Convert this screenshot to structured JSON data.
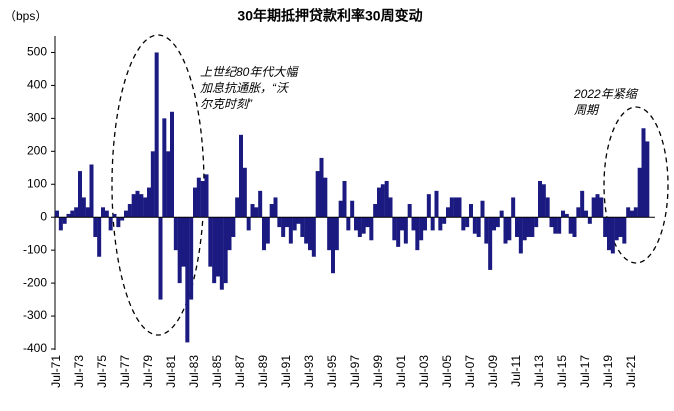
{
  "chart_data": {
    "type": "bar",
    "title": "30年期抵押贷款利率30周变动",
    "y_unit": "（bps）",
    "color": "#1a1a80",
    "categories": [
      "Jul-71",
      null,
      null,
      null,
      null,
      null,
      "Jul-73",
      null,
      null,
      null,
      null,
      null,
      "Jul-75",
      null,
      null,
      null,
      null,
      null,
      "Jul-77",
      null,
      null,
      null,
      null,
      null,
      "Jul-79",
      null,
      null,
      null,
      null,
      null,
      "Jul-81",
      null,
      null,
      null,
      null,
      null,
      "Jul-83",
      null,
      null,
      null,
      null,
      null,
      "Jul-85",
      null,
      null,
      null,
      null,
      null,
      "Jul-87",
      null,
      null,
      null,
      null,
      null,
      "Jul-89",
      null,
      null,
      null,
      null,
      null,
      "Jul-91",
      null,
      null,
      null,
      null,
      null,
      "Jul-93",
      null,
      null,
      null,
      null,
      null,
      "Jul-95",
      null,
      null,
      null,
      null,
      null,
      "Jul-97",
      null,
      null,
      null,
      null,
      null,
      "Jul-99",
      null,
      null,
      null,
      null,
      null,
      "Jul-01",
      null,
      null,
      null,
      null,
      null,
      "Jul-03",
      null,
      null,
      null,
      null,
      null,
      "Jul-05",
      null,
      null,
      null,
      null,
      null,
      "Jul-07",
      null,
      null,
      null,
      null,
      null,
      "Jul-09",
      null,
      null,
      null,
      null,
      null,
      "Jul-11",
      null,
      null,
      null,
      null,
      null,
      "Jul-13",
      null,
      null,
      null,
      null,
      null,
      "Jul-15",
      null,
      null,
      null,
      null,
      null,
      "Jul-17",
      null,
      null,
      null,
      null,
      null,
      "Jul-19",
      null,
      null,
      null,
      null,
      null,
      "Jul-21",
      null,
      null,
      null,
      null
    ],
    "values": [
      20,
      -40,
      -20,
      10,
      20,
      30,
      140,
      60,
      30,
      160,
      -60,
      -120,
      30,
      20,
      -40,
      10,
      -30,
      -10,
      20,
      40,
      70,
      80,
      70,
      60,
      90,
      200,
      500,
      -250,
      300,
      200,
      320,
      -100,
      -200,
      -150,
      -380,
      -250,
      90,
      120,
      110,
      130,
      -150,
      -200,
      -180,
      -220,
      -200,
      -100,
      -60,
      60,
      250,
      150,
      -40,
      40,
      30,
      80,
      -100,
      -80,
      40,
      60,
      -30,
      -60,
      -30,
      -80,
      -40,
      -20,
      -60,
      -80,
      -100,
      -120,
      140,
      180,
      120,
      -100,
      -170,
      -100,
      50,
      110,
      -40,
      50,
      -40,
      -60,
      -50,
      -30,
      -70,
      40,
      90,
      100,
      110,
      60,
      -70,
      -90,
      -40,
      -80,
      40,
      -40,
      -100,
      -70,
      -40,
      70,
      -40,
      80,
      -40,
      -20,
      30,
      60,
      60,
      60,
      -40,
      -30,
      40,
      -50,
      -60,
      50,
      -80,
      -160,
      -40,
      -30,
      20,
      -80,
      -70,
      60,
      -60,
      -110,
      -70,
      -60,
      -60,
      -30,
      110,
      100,
      60,
      -30,
      -50,
      -50,
      20,
      10,
      -50,
      -60,
      30,
      80,
      20,
      -20,
      60,
      70,
      60,
      -60,
      -100,
      -110,
      -70,
      -60,
      -80,
      30,
      20,
      30,
      150,
      270,
      230
    ],
    "ylim": [
      -400,
      550
    ],
    "yticks": [
      -400,
      -300,
      -200,
      -100,
      0,
      100,
      200,
      300,
      400,
      500
    ],
    "annotations": [
      [
        "上世纪80年代大幅",
        "加息抗通胀，“沃",
        "尔克时刻”"
      ],
      [
        "2022年紧缩",
        "周期"
      ]
    ]
  }
}
